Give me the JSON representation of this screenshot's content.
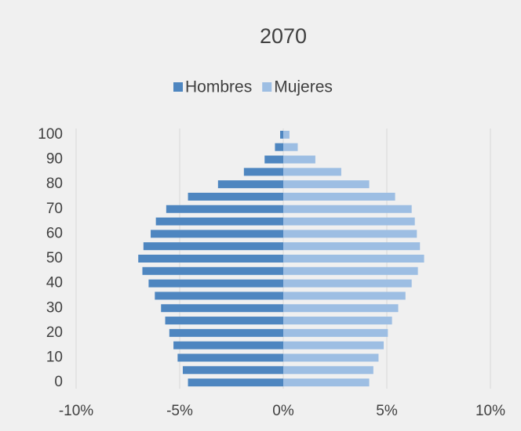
{
  "chart_data": {
    "type": "bar",
    "orientation": "horizontal",
    "title": "2070",
    "categories": [
      "0",
      null,
      "10",
      null,
      "20",
      null,
      "30",
      null,
      "40",
      null,
      "50",
      null,
      "60",
      null,
      "70",
      null,
      "80",
      null,
      "90",
      null,
      "100"
    ],
    "series": [
      {
        "name": "Hombres",
        "color": "#4e86c0",
        "values": [
          -4.6,
          -4.85,
          -5.1,
          -5.3,
          -5.5,
          -5.7,
          -5.9,
          -6.2,
          -6.5,
          -6.8,
          -7.0,
          -6.75,
          -6.4,
          -6.15,
          -5.65,
          -4.6,
          -3.15,
          -1.9,
          -0.9,
          -0.4,
          -0.15
        ]
      },
      {
        "name": "Mujeres",
        "color": "#9dbee3",
        "values": [
          4.15,
          4.35,
          4.6,
          4.85,
          5.05,
          5.25,
          5.55,
          5.9,
          6.2,
          6.5,
          6.8,
          6.6,
          6.45,
          6.35,
          6.2,
          5.4,
          4.15,
          2.8,
          1.55,
          0.7,
          0.3
        ]
      }
    ],
    "xlim": [
      -10,
      10
    ],
    "xticks": [
      {
        "value": -10,
        "label": "-10%"
      },
      {
        "value": -5,
        "label": "-5%"
      },
      {
        "value": 0,
        "label": "0%"
      },
      {
        "value": 5,
        "label": "5%"
      },
      {
        "value": 10,
        "label": "10%"
      }
    ],
    "grid": true,
    "legend": "top"
  }
}
